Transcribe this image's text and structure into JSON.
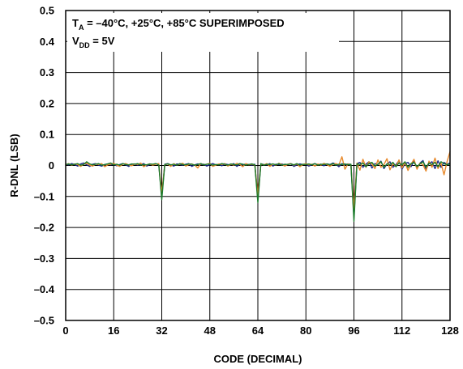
{
  "chart_data": {
    "type": "line",
    "title": "",
    "xlabel": "CODE (DECIMAL)",
    "ylabel": "R-DNL (LSB)",
    "xlim": [
      0,
      128
    ],
    "ylim": [
      -0.5,
      0.5
    ],
    "xticks": [
      0,
      16,
      32,
      48,
      64,
      80,
      96,
      112,
      128
    ],
    "yticks": [
      0.5,
      0.4,
      0.3,
      0.2,
      0.1,
      0,
      -0.1,
      -0.2,
      -0.3,
      -0.4,
      -0.5
    ],
    "ytick_labels": [
      "0.5",
      "0.4",
      "0.3",
      "0.2",
      "0.1",
      "0",
      "–0.1",
      "–0.2",
      "–0.3",
      "–0.4",
      "–0.5"
    ],
    "grid": {
      "x": true,
      "y": true
    },
    "legend": "none",
    "annotation": {
      "line1_prefix": "T",
      "line1_sub": "A",
      "line1_rest": " = –40°C, +25°C, +85°C SUPERIMPOSED",
      "line2_prefix": "V",
      "line2_sub": "DD",
      "line2_rest": " = 5V"
    },
    "series": [
      {
        "color": "#1a2a8c",
        "y": [
          0.004,
          0.002,
          0.006,
          0.003,
          -0.002,
          0.005,
          0.008,
          0.002,
          -0.003,
          0.004,
          0.006,
          0.001,
          -0.002,
          0.003,
          0.005,
          0.002,
          0.004,
          -0.001,
          0.003,
          0.006,
          0.002,
          -0.003,
          0.004,
          0.005,
          0.001,
          0.003,
          0.006,
          -0.002,
          0.004,
          0.002,
          0.005,
          0.003,
          -0.1,
          0.004,
          0.006,
          0.002,
          -0.002,
          0.005,
          0.003,
          0.001,
          0.004,
          0.006,
          -0.003,
          0.002,
          0.005,
          0.003,
          0.004,
          -0.002,
          0.003,
          0.006,
          0.002,
          0.004,
          -0.001,
          0.005,
          0.003,
          0.002,
          0.006,
          -0.003,
          0.004,
          0.002,
          0.005,
          0.003,
          0.001,
          0.004,
          -0.108,
          0.005,
          0.003,
          0.002,
          0.006,
          -0.002,
          0.004,
          0.003,
          0.005,
          0.001,
          0.004,
          0.006,
          -0.003,
          0.002,
          0.005,
          0.003,
          0.004,
          -0.002,
          0.003,
          0.006,
          0.002,
          0.004,
          -0.001,
          0.005,
          0.003,
          0.008,
          0.004,
          -0.004,
          0.006,
          0.002,
          0.005,
          0.003,
          -0.165,
          0.006,
          0.01,
          -0.006,
          0.004,
          0.012,
          -0.008,
          0.006,
          0.003,
          0.014,
          -0.01,
          0.005,
          0.012,
          -0.006,
          0.003,
          0.015,
          -0.012,
          0.006,
          0.01,
          -0.004,
          0.014,
          -0.01,
          0.008,
          0.016,
          -0.012,
          0.006,
          0.012,
          -0.01,
          0.015,
          -0.006,
          0.01,
          0.004,
          0.008
        ]
      },
      {
        "color": "#e8892a",
        "y": [
          0.002,
          0.006,
          0.001,
          0.005,
          0.003,
          -0.003,
          0.004,
          0.007,
          0.001,
          -0.002,
          0.005,
          0.003,
          0.006,
          -0.004,
          0.002,
          0.004,
          0.007,
          0.001,
          -0.003,
          0.004,
          0.006,
          0.002,
          -0.001,
          0.005,
          0.003,
          0.008,
          -0.004,
          0.002,
          0.005,
          0.001,
          0.004,
          0.006,
          -0.09,
          0.002,
          0.005,
          -0.003,
          0.006,
          0.001,
          0.004,
          0.007,
          -0.002,
          0.003,
          0.005,
          0.001,
          -0.008,
          0.006,
          0.002,
          0.004,
          0.007,
          -0.003,
          0.001,
          0.005,
          0.003,
          0.006,
          -0.002,
          0.004,
          0.001,
          0.007,
          0.003,
          -0.004,
          0.006,
          0.002,
          0.004,
          0.001,
          -0.095,
          0.004,
          0.002,
          0.006,
          -0.003,
          0.005,
          0.001,
          0.007,
          0.003,
          -0.002,
          0.004,
          0.006,
          0.001,
          0.005,
          -0.004,
          0.003,
          0.006,
          0.002,
          0.004,
          -0.002,
          0.005,
          0.001,
          0.007,
          0.003,
          -0.003,
          0.004,
          0.006,
          0.002,
          0.028,
          -0.012,
          0.005,
          0.001,
          -0.14,
          0.008,
          -0.015,
          0.02,
          -0.006,
          0.012,
          0.004,
          -0.01,
          0.018,
          -0.006,
          0.003,
          0.022,
          -0.014,
          0.006,
          -0.004,
          0.018,
          -0.008,
          0.01,
          -0.016,
          0.004,
          0.02,
          -0.012,
          0.008,
          0.002,
          -0.018,
          0.014,
          -0.006,
          0.024,
          -0.01,
          0.008,
          -0.03,
          0.012,
          0.045
        ]
      },
      {
        "color": "#1a7a2a",
        "y": [
          0.003,
          0.005,
          0.002,
          0.004,
          0.006,
          0.001,
          0.003,
          0.012,
          0.005,
          0.002,
          0.004,
          0.006,
          0.001,
          0.003,
          0.005,
          0.008,
          0.002,
          0.004,
          0.001,
          0.006,
          0.003,
          0.002,
          0.005,
          0.004,
          0.006,
          0.001,
          0.003,
          0.002,
          0.005,
          0.004,
          0.006,
          0.002,
          -0.11,
          0.003,
          0.005,
          0.002,
          0.004,
          0.001,
          0.006,
          0.003,
          0.002,
          0.005,
          0.004,
          0.001,
          0.003,
          0.006,
          0.002,
          0.004,
          0.005,
          0.001,
          0.003,
          0.002,
          0.006,
          0.004,
          0.001,
          0.005,
          0.003,
          0.002,
          0.006,
          0.004,
          0.001,
          0.003,
          0.005,
          0.002,
          -0.12,
          0.006,
          0.001,
          0.004,
          0.003,
          0.005,
          0.002,
          0.006,
          0.001,
          0.004,
          0.003,
          0.005,
          0.002,
          0.006,
          0.001,
          0.004,
          0.003,
          0.005,
          0.002,
          0.006,
          0.001,
          0.004,
          0.003,
          0.005,
          0.002,
          0.006,
          0.001,
          0.004,
          0.003,
          0.005,
          0.002,
          0.004,
          -0.18,
          0.005,
          0.003,
          0.008,
          -0.004,
          0.006,
          0.01,
          -0.002,
          0.004,
          0.012,
          -0.006,
          0.005,
          0.003,
          0.01,
          -0.004,
          0.008,
          0.002,
          0.012,
          -0.006,
          0.006,
          0.01,
          -0.003,
          0.005,
          0.012,
          -0.005,
          0.008,
          0.003,
          0.01,
          -0.004,
          0.012,
          0.006,
          0.002,
          0.005
        ]
      }
    ]
  }
}
